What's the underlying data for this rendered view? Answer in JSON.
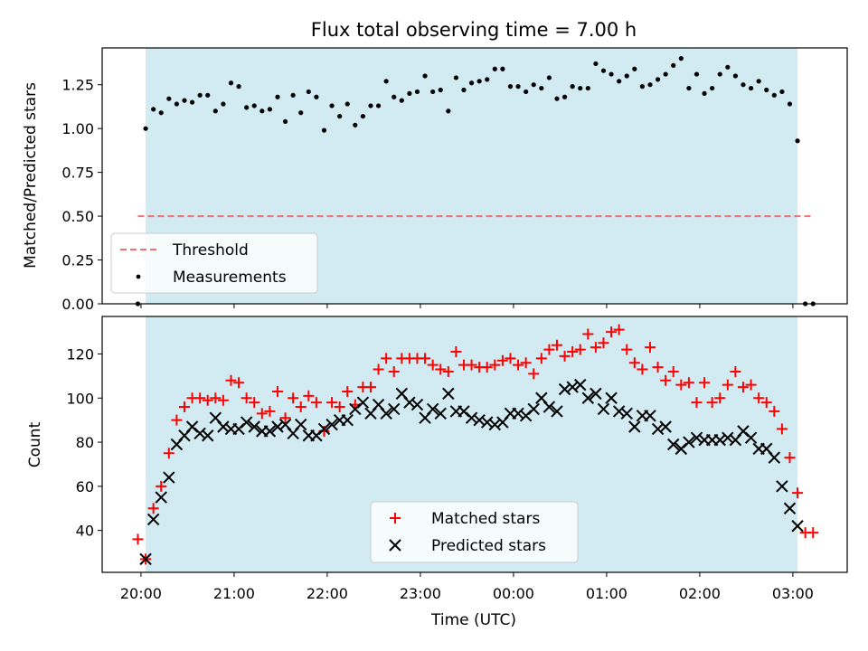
{
  "chart_data": [
    {
      "type": "scatter",
      "title": "Flux total observing time = 7.00 h",
      "ylabel": "Matched/Predicted stars",
      "xlabel": "",
      "xlim": [
        "19:35",
        "03:35"
      ],
      "ylim": [
        0,
        1.46
      ],
      "yticks": [
        "0.00",
        "0.25",
        "0.50",
        "0.75",
        "1.00",
        "1.25"
      ],
      "observing_window": [
        "20:03",
        "03:03"
      ],
      "threshold": {
        "name": "Threshold",
        "value": 0.5,
        "x_start": "19:58",
        "x_end": "03:13",
        "color": "#f07070"
      },
      "measurements": {
        "name": "Measurements",
        "color": "#000000",
        "x": [
          "19:58",
          "20:03",
          "20:08",
          "20:13",
          "20:18",
          "20:23",
          "20:28",
          "20:33",
          "20:38",
          "20:43",
          "20:48",
          "20:53",
          "20:58",
          "21:03",
          "21:08",
          "21:13",
          "21:18",
          "21:23",
          "21:28",
          "21:33",
          "21:38",
          "21:43",
          "21:48",
          "21:53",
          "21:58",
          "22:03",
          "22:08",
          "22:13",
          "22:18",
          "22:23",
          "22:28",
          "22:33",
          "22:38",
          "22:43",
          "22:48",
          "22:53",
          "22:58",
          "23:03",
          "23:08",
          "23:13",
          "23:18",
          "23:23",
          "23:28",
          "23:33",
          "23:38",
          "23:43",
          "23:48",
          "23:53",
          "23:58",
          "00:03",
          "00:08",
          "00:13",
          "00:18",
          "00:23",
          "00:28",
          "00:33",
          "00:38",
          "00:43",
          "00:48",
          "00:53",
          "00:58",
          "01:03",
          "01:08",
          "01:13",
          "01:18",
          "01:23",
          "01:28",
          "01:33",
          "01:38",
          "01:43",
          "01:48",
          "01:53",
          "01:58",
          "02:03",
          "02:08",
          "02:13",
          "02:18",
          "02:23",
          "02:28",
          "02:33",
          "02:38",
          "02:43",
          "02:48",
          "02:53",
          "02:58",
          "03:03",
          "03:08",
          "03:13"
        ],
        "y": [
          0.0,
          1.0,
          1.11,
          1.09,
          1.17,
          1.14,
          1.16,
          1.15,
          1.19,
          1.19,
          1.1,
          1.14,
          1.26,
          1.24,
          1.12,
          1.13,
          1.1,
          1.11,
          1.18,
          1.04,
          1.19,
          1.09,
          1.21,
          1.18,
          0.99,
          1.13,
          1.07,
          1.14,
          1.02,
          1.07,
          1.13,
          1.13,
          1.27,
          1.18,
          1.16,
          1.2,
          1.21,
          1.3,
          1.21,
          1.22,
          1.1,
          1.29,
          1.22,
          1.26,
          1.27,
          1.28,
          1.34,
          1.34,
          1.24,
          1.24,
          1.21,
          1.25,
          1.23,
          1.29,
          1.17,
          1.18,
          1.24,
          1.23,
          1.23,
          1.37,
          1.33,
          1.31,
          1.27,
          1.3,
          1.34,
          1.24,
          1.25,
          1.28,
          1.31,
          1.36,
          1.4,
          1.23,
          1.31,
          1.2,
          1.23,
          1.31,
          1.35,
          1.3,
          1.25,
          1.23,
          1.27,
          1.22,
          1.19,
          1.21,
          1.14,
          0.93,
          0.0,
          0.0
        ]
      },
      "legend": {
        "location": "lower-left",
        "entries": [
          "Threshold",
          "Measurements"
        ]
      }
    },
    {
      "type": "scatter",
      "title": "",
      "xlabel": "Time (UTC)",
      "ylabel": "Count",
      "xlim": [
        "19:35",
        "03:35"
      ],
      "ylim": [
        21,
        137
      ],
      "xticks": [
        "20:00",
        "21:00",
        "22:00",
        "23:00",
        "00:00",
        "01:00",
        "02:00",
        "03:00"
      ],
      "yticks": [
        "40",
        "60",
        "80",
        "100",
        "120"
      ],
      "observing_window": [
        "20:03",
        "03:03"
      ],
      "series": [
        {
          "name": "Matched stars",
          "marker": "plus",
          "color": "#ff0000",
          "x": [
            "19:58",
            "20:03",
            "20:08",
            "20:13",
            "20:18",
            "20:23",
            "20:28",
            "20:33",
            "20:38",
            "20:43",
            "20:48",
            "20:53",
            "20:58",
            "21:03",
            "21:08",
            "21:13",
            "21:18",
            "21:23",
            "21:28",
            "21:33",
            "21:38",
            "21:43",
            "21:48",
            "21:53",
            "21:58",
            "22:03",
            "22:08",
            "22:13",
            "22:18",
            "22:23",
            "22:28",
            "22:33",
            "22:38",
            "22:43",
            "22:48",
            "22:53",
            "22:58",
            "23:03",
            "23:08",
            "23:13",
            "23:18",
            "23:23",
            "23:28",
            "23:33",
            "23:38",
            "23:43",
            "23:48",
            "23:53",
            "23:58",
            "00:03",
            "00:08",
            "00:13",
            "00:18",
            "00:23",
            "00:28",
            "00:33",
            "00:38",
            "00:43",
            "00:48",
            "00:53",
            "00:58",
            "01:03",
            "01:08",
            "01:13",
            "01:18",
            "01:23",
            "01:28",
            "01:33",
            "01:38",
            "01:43",
            "01:48",
            "01:53",
            "01:58",
            "02:03",
            "02:08",
            "02:13",
            "02:18",
            "02:23",
            "02:28",
            "02:33",
            "02:38",
            "02:43",
            "02:48",
            "02:53",
            "02:58",
            "03:03",
            "03:08",
            "03:13"
          ],
          "y": [
            36,
            27,
            50,
            60,
            75,
            90,
            96,
            100,
            100,
            99,
            100,
            99,
            108,
            107,
            100,
            98,
            93,
            94,
            103,
            91,
            100,
            96,
            101,
            98,
            85,
            98,
            96,
            103,
            97,
            105,
            105,
            113,
            118,
            112,
            118,
            118,
            118,
            118,
            115,
            113,
            112,
            121,
            115,
            115,
            114,
            114,
            115,
            117,
            118,
            115,
            116,
            111,
            118,
            122,
            124,
            119,
            121,
            122,
            129,
            123,
            125,
            130,
            131,
            122,
            116,
            113,
            123,
            114,
            108,
            112,
            106,
            107,
            98,
            107,
            98,
            100,
            106,
            112,
            105,
            106,
            100,
            98,
            94,
            86,
            73,
            57,
            39,
            39
          ]
        },
        {
          "name": "Predicted stars",
          "marker": "x",
          "color": "#000000",
          "x": [
            "20:03",
            "20:08",
            "20:13",
            "20:18",
            "20:23",
            "20:28",
            "20:33",
            "20:38",
            "20:43",
            "20:48",
            "20:53",
            "20:58",
            "21:03",
            "21:08",
            "21:13",
            "21:18",
            "21:23",
            "21:28",
            "21:33",
            "21:38",
            "21:43",
            "21:48",
            "21:53",
            "21:58",
            "22:03",
            "22:08",
            "22:13",
            "22:18",
            "22:23",
            "22:28",
            "22:33",
            "22:38",
            "22:43",
            "22:48",
            "22:53",
            "22:58",
            "23:03",
            "23:08",
            "23:13",
            "23:18",
            "23:23",
            "23:28",
            "23:33",
            "23:38",
            "23:43",
            "23:48",
            "23:53",
            "23:58",
            "00:03",
            "00:08",
            "00:13",
            "00:18",
            "00:23",
            "00:28",
            "00:33",
            "00:38",
            "00:43",
            "00:48",
            "00:53",
            "00:58",
            "01:03",
            "01:08",
            "01:13",
            "01:18",
            "01:23",
            "01:28",
            "01:33",
            "01:38",
            "01:43",
            "01:48",
            "01:53",
            "01:58",
            "02:03",
            "02:08",
            "02:13",
            "02:18",
            "02:23",
            "02:28",
            "02:33",
            "02:38",
            "02:43",
            "02:48",
            "02:53",
            "02:58",
            "03:03"
          ],
          "y": [
            27,
            45,
            55,
            64,
            79,
            83,
            87,
            84,
            83,
            91,
            87,
            86,
            86,
            89,
            87,
            85,
            85,
            87,
            88,
            84,
            88,
            83,
            83,
            86,
            88,
            90,
            90,
            95,
            98,
            93,
            97,
            93,
            95,
            102,
            98,
            97,
            91,
            95,
            93,
            102,
            94,
            94,
            91,
            90,
            89,
            88,
            89,
            93,
            93,
            92,
            95,
            100,
            96,
            94,
            104,
            105,
            106,
            100,
            102,
            95,
            100,
            94,
            93,
            87,
            92,
            92,
            86,
            87,
            79,
            77,
            80,
            82,
            81,
            81,
            81,
            82,
            81,
            85,
            82,
            77,
            77,
            73,
            60,
            50,
            42
          ]
        }
      ],
      "legend": {
        "location": "lower-center",
        "entries": [
          "Matched stars",
          "Predicted stars"
        ]
      }
    }
  ]
}
